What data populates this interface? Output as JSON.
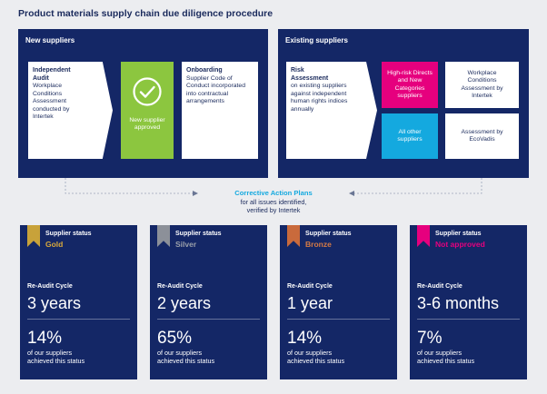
{
  "title": "Product materials supply chain due diligence procedure",
  "colors": {
    "navy": "#142766",
    "green": "#8cc63f",
    "pink": "#e6007e",
    "cyan": "#14a9df",
    "gold": "#c8a23a",
    "silver": "#8c9099",
    "bronze": "#c96a3c"
  },
  "new_suppliers": {
    "title": "New suppliers",
    "audit_heading": "Independent Audit",
    "audit_text": "Workplace Conditions Assessment conducted by Intertek",
    "approved_icon": "check-circle-icon",
    "approved_text": "New supplier approved",
    "onboarding_heading": "Onboarding",
    "onboarding_text": "Supplier Code of Conduct incorporated into contractual arrangements"
  },
  "existing_suppliers": {
    "title": "Existing suppliers",
    "risk_heading": "Risk Assessment",
    "risk_text": "on existing suppliers against independent human rights indices annually",
    "high_risk": "High-risk Directs and New Categories suppliers",
    "other": "All other suppliers",
    "workplace": "Workplace Conditions Assessment by Intertek",
    "ecovadis": "Assessment by EcoVadis"
  },
  "corrective": {
    "title": "Corrective Action Plans",
    "line1": "for all issues identified,",
    "line2": "verified by Intertek"
  },
  "cards": [
    {
      "status_label": "Supplier status",
      "status": "Gold",
      "status_color": "#d9a93b",
      "reaudit_label": "Re-Audit Cycle",
      "reaudit": "3 years",
      "percent": "14%",
      "percent_text1": "of our suppliers",
      "percent_text2": "achieved this status"
    },
    {
      "status_label": "Supplier status",
      "status": "Silver",
      "status_color": "#9aa0aa",
      "reaudit_label": "Re-Audit Cycle",
      "reaudit": "2 years",
      "percent": "65%",
      "percent_text1": "of our suppliers",
      "percent_text2": "achieved this status"
    },
    {
      "status_label": "Supplier status",
      "status": "Bronze",
      "status_color": "#d47a45",
      "reaudit_label": "Re-Audit Cycle",
      "reaudit": "1 year",
      "percent": "14%",
      "percent_text1": "of our suppliers",
      "percent_text2": "achieved this status"
    },
    {
      "status_label": "Supplier status",
      "status": "Not approved",
      "status_color": "#e6007e",
      "reaudit_label": "Re-Audit Cycle",
      "reaudit": "3-6 months",
      "percent": "7%",
      "percent_text1": "of our suppliers",
      "percent_text2": "achieved this status"
    }
  ]
}
